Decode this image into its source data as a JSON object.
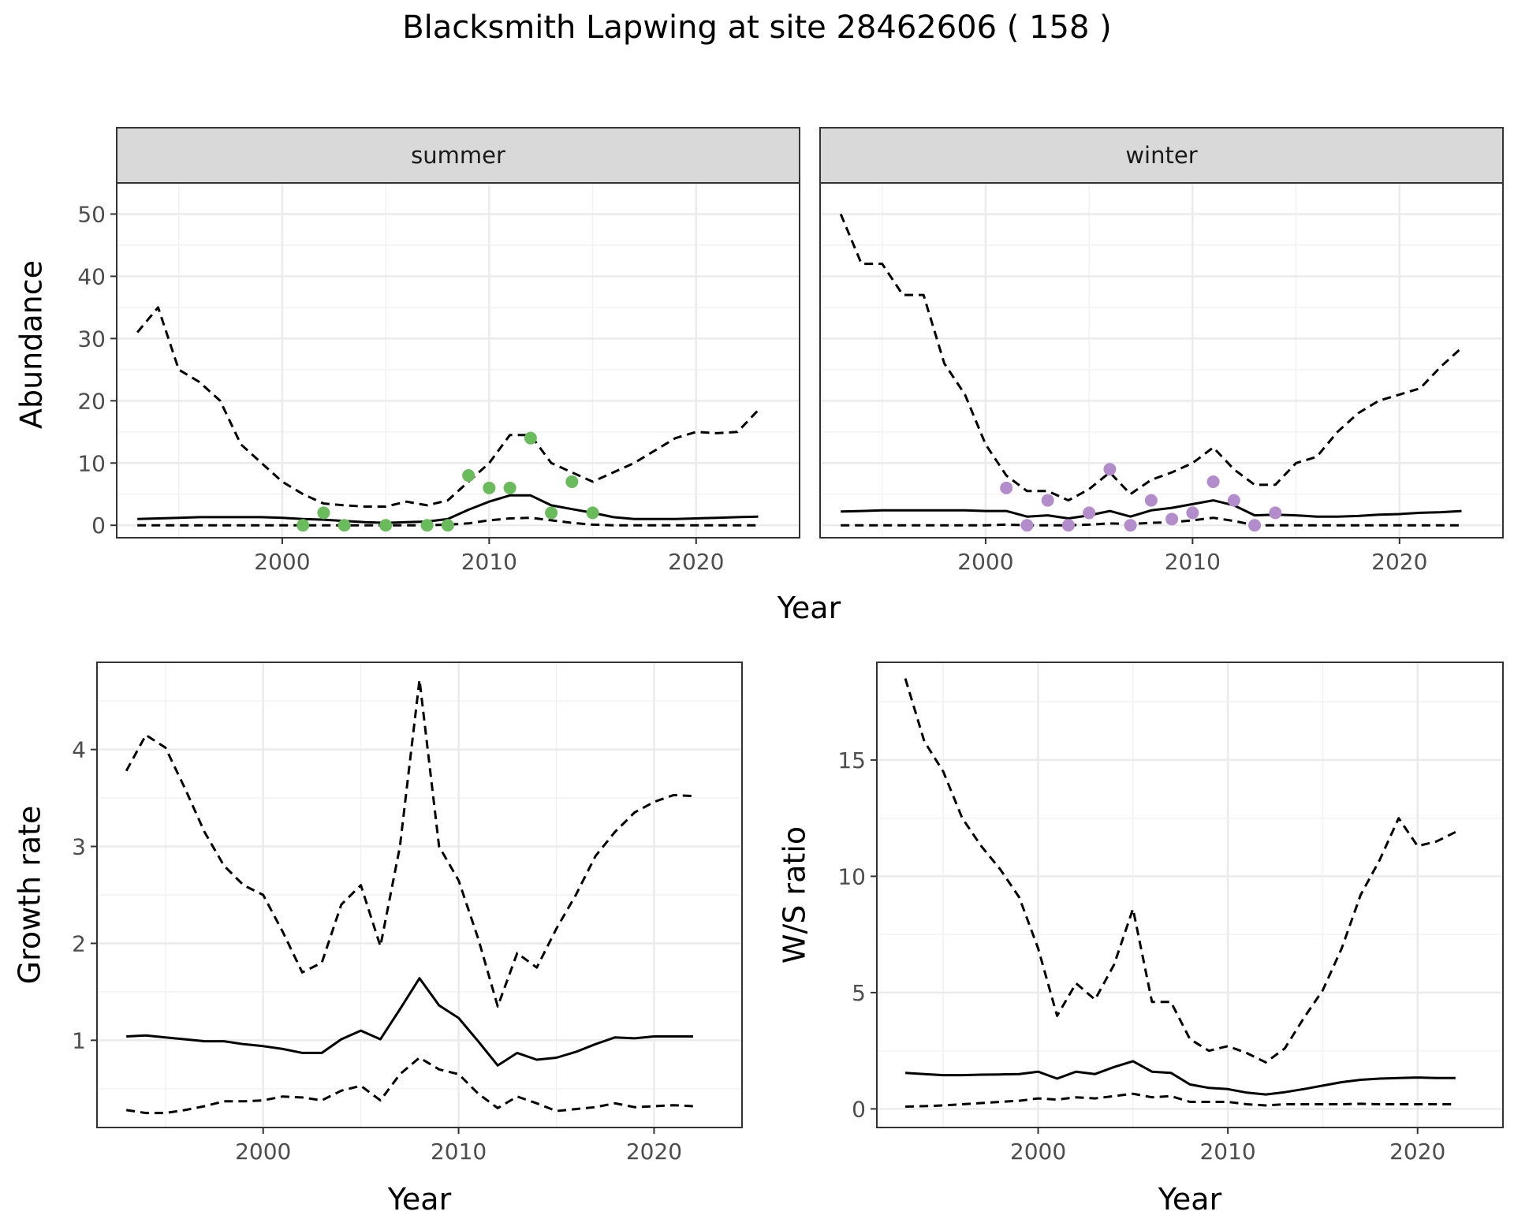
{
  "title": "Blacksmith Lapwing at site 28462606 ( 158 )",
  "colors": {
    "summer_points": "#6abb5b",
    "winter_points": "#b38ccc",
    "strip_fill": "#d9d9d9",
    "line": "#000000",
    "grid": "#ebebeb"
  },
  "chart_data": [
    {
      "id": "summer",
      "type": "line",
      "facet_label": "summer",
      "ylabel": "Abundance",
      "xlabel": "",
      "xlim": [
        1992,
        2025
      ],
      "ylim": [
        -2,
        55
      ],
      "xticks": [
        2000,
        2010,
        2020
      ],
      "yticks": [
        0,
        10,
        20,
        30,
        40,
        50
      ],
      "grid": true,
      "point_color": "#6abb5b",
      "series": [
        {
          "style": "solid",
          "x": [
            1993,
            1994,
            1995,
            1996,
            1997,
            1998,
            1999,
            2000,
            2001,
            2002,
            2003,
            2004,
            2005,
            2006,
            2007,
            2008,
            2009,
            2010,
            2011,
            2012,
            2013,
            2014,
            2015,
            2016,
            2017,
            2018,
            2019,
            2020,
            2021,
            2022,
            2023
          ],
          "values": [
            1.0,
            1.1,
            1.2,
            1.3,
            1.3,
            1.3,
            1.3,
            1.2,
            1.0,
            0.9,
            0.7,
            0.5,
            0.4,
            0.5,
            0.6,
            1.0,
            2.5,
            3.8,
            4.8,
            4.8,
            3.2,
            2.6,
            2.0,
            1.3,
            1.0,
            1.0,
            1.0,
            1.1,
            1.2,
            1.3,
            1.4
          ]
        },
        {
          "style": "dashed",
          "x": [
            1993,
            1994,
            1995,
            1996,
            1997,
            1998,
            1999,
            2000,
            2001,
            2002,
            2003,
            2004,
            2005,
            2006,
            2007,
            2008,
            2009,
            2010,
            2011,
            2012,
            2013,
            2014,
            2015,
            2016,
            2017,
            2018,
            2019,
            2020,
            2021,
            2022,
            2023
          ],
          "values": [
            31,
            35,
            25,
            23,
            20,
            13,
            10,
            7,
            5,
            3.5,
            3.2,
            3,
            3,
            3.8,
            3.2,
            4,
            7,
            10,
            14.5,
            14.5,
            10,
            8.5,
            7,
            8.5,
            10,
            12,
            14,
            15,
            14.8,
            15,
            18.5
          ]
        },
        {
          "style": "dashed",
          "x": [
            1993,
            1994,
            1995,
            1996,
            1997,
            1998,
            1999,
            2000,
            2001,
            2002,
            2003,
            2004,
            2005,
            2006,
            2007,
            2008,
            2009,
            2010,
            2011,
            2012,
            2013,
            2014,
            2015,
            2016,
            2017,
            2018,
            2019,
            2020,
            2021,
            2022,
            2023
          ],
          "values": [
            0,
            0,
            0,
            0,
            0,
            0,
            0,
            0,
            0,
            0,
            0,
            0,
            0,
            0,
            0,
            0.1,
            0.3,
            0.8,
            1.1,
            1.2,
            0.8,
            0.4,
            0.1,
            0,
            0,
            0,
            0,
            0,
            0,
            0,
            0
          ]
        }
      ],
      "points": [
        {
          "x": 2001,
          "y": 0
        },
        {
          "x": 2002,
          "y": 2
        },
        {
          "x": 2003,
          "y": 0
        },
        {
          "x": 2005,
          "y": 0
        },
        {
          "x": 2007,
          "y": 0
        },
        {
          "x": 2008,
          "y": 0
        },
        {
          "x": 2009,
          "y": 8
        },
        {
          "x": 2010,
          "y": 6
        },
        {
          "x": 2011,
          "y": 6
        },
        {
          "x": 2012,
          "y": 14
        },
        {
          "x": 2013,
          "y": 2
        },
        {
          "x": 2014,
          "y": 7
        },
        {
          "x": 2015,
          "y": 2
        }
      ]
    },
    {
      "id": "winter",
      "type": "line",
      "facet_label": "winter",
      "ylabel": "",
      "xlabel": "",
      "xlim": [
        1992,
        2025
      ],
      "ylim": [
        -2,
        55
      ],
      "xticks": [
        2000,
        2010,
        2020
      ],
      "yticks": [
        0,
        10,
        20,
        30,
        40,
        50
      ],
      "grid": true,
      "point_color": "#b38ccc",
      "series": [
        {
          "style": "solid",
          "x": [
            1993,
            1994,
            1995,
            1996,
            1997,
            1998,
            1999,
            2000,
            2001,
            2002,
            2003,
            2004,
            2005,
            2006,
            2007,
            2008,
            2009,
            2010,
            2011,
            2012,
            2013,
            2014,
            2015,
            2016,
            2017,
            2018,
            2019,
            2020,
            2021,
            2022,
            2023
          ],
          "values": [
            2.2,
            2.3,
            2.4,
            2.4,
            2.4,
            2.4,
            2.4,
            2.3,
            2.3,
            1.4,
            1.6,
            1.1,
            1.6,
            2.3,
            1.4,
            2.4,
            2.8,
            3.4,
            4.0,
            3.2,
            1.6,
            1.7,
            1.6,
            1.4,
            1.4,
            1.5,
            1.7,
            1.8,
            2.0,
            2.1,
            2.3
          ]
        },
        {
          "style": "dashed",
          "x": [
            1993,
            1994,
            1995,
            1996,
            1997,
            1998,
            1999,
            2000,
            2001,
            2002,
            2003,
            2004,
            2005,
            2006,
            2007,
            2008,
            2009,
            2010,
            2011,
            2012,
            2013,
            2014,
            2015,
            2016,
            2017,
            2018,
            2019,
            2020,
            2021,
            2022,
            2023
          ],
          "values": [
            50,
            42,
            42,
            37,
            37,
            26,
            21,
            13,
            8,
            5.5,
            5.5,
            4,
            5.8,
            8.5,
            5,
            7.3,
            8.5,
            10,
            12.5,
            9,
            6.5,
            6.5,
            10,
            11,
            15,
            18,
            20,
            21,
            22,
            25.5,
            28.5
          ]
        },
        {
          "style": "dashed",
          "x": [
            1993,
            1994,
            1995,
            1996,
            1997,
            1998,
            1999,
            2000,
            2001,
            2002,
            2003,
            2004,
            2005,
            2006,
            2007,
            2008,
            2009,
            2010,
            2011,
            2012,
            2013,
            2014,
            2015,
            2016,
            2017,
            2018,
            2019,
            2020,
            2021,
            2022,
            2023
          ],
          "values": [
            0,
            0,
            0,
            0,
            0,
            0,
            0,
            0,
            0.1,
            0,
            0,
            0,
            0.1,
            0.3,
            0.2,
            0.4,
            0.5,
            0.8,
            1.2,
            0.7,
            0,
            0,
            0,
            0,
            0,
            0,
            0,
            0,
            0,
            0,
            0
          ]
        }
      ],
      "points": [
        {
          "x": 2001,
          "y": 6
        },
        {
          "x": 2002,
          "y": 0
        },
        {
          "x": 2003,
          "y": 4
        },
        {
          "x": 2004,
          "y": 0
        },
        {
          "x": 2005,
          "y": 2
        },
        {
          "x": 2006,
          "y": 9
        },
        {
          "x": 2007,
          "y": 0
        },
        {
          "x": 2008,
          "y": 4
        },
        {
          "x": 2009,
          "y": 1
        },
        {
          "x": 2010,
          "y": 2
        },
        {
          "x": 2011,
          "y": 7
        },
        {
          "x": 2012,
          "y": 4
        },
        {
          "x": 2013,
          "y": 0
        },
        {
          "x": 2014,
          "y": 2
        }
      ]
    },
    {
      "id": "growth",
      "type": "line",
      "ylabel": "Growth rate",
      "xlabel": "Year",
      "xlim": [
        1991.5,
        2024.5
      ],
      "ylim": [
        0.1,
        4.9
      ],
      "xticks": [
        2000,
        2010,
        2020
      ],
      "yticks": [
        1,
        2,
        3,
        4
      ],
      "grid": true,
      "series": [
        {
          "style": "solid",
          "x": [
            1993,
            1994,
            1995,
            1996,
            1997,
            1998,
            1999,
            2000,
            2001,
            2002,
            2003,
            2004,
            2005,
            2006,
            2007,
            2008,
            2009,
            2010,
            2011,
            2012,
            2013,
            2014,
            2015,
            2016,
            2017,
            2018,
            2019,
            2020,
            2021,
            2022
          ],
          "values": [
            1.04,
            1.05,
            1.03,
            1.01,
            0.99,
            0.99,
            0.96,
            0.94,
            0.91,
            0.87,
            0.87,
            1.01,
            1.1,
            1.01,
            1.32,
            1.64,
            1.36,
            1.23,
            0.99,
            0.74,
            0.87,
            0.8,
            0.82,
            0.88,
            0.96,
            1.03,
            1.02,
            1.04,
            1.04,
            1.04
          ]
        },
        {
          "style": "dashed",
          "x": [
            1993,
            1994,
            1995,
            1996,
            1997,
            1998,
            1999,
            2000,
            2001,
            2002,
            2003,
            2004,
            2005,
            2006,
            2007,
            2008,
            2009,
            2010,
            2011,
            2012,
            2013,
            2014,
            2015,
            2016,
            2017,
            2018,
            2019,
            2020,
            2021,
            2022
          ],
          "values": [
            3.78,
            4.15,
            4.02,
            3.6,
            3.15,
            2.8,
            2.6,
            2.5,
            2.12,
            1.7,
            1.8,
            2.4,
            2.6,
            1.97,
            3.0,
            4.72,
            3.0,
            2.65,
            2.05,
            1.35,
            1.9,
            1.75,
            2.15,
            2.5,
            2.9,
            3.15,
            3.35,
            3.46,
            3.53,
            3.52
          ]
        },
        {
          "style": "dashed",
          "x": [
            1993,
            1994,
            1995,
            1996,
            1997,
            1998,
            1999,
            2000,
            2001,
            2002,
            2003,
            2004,
            2005,
            2006,
            2007,
            2008,
            2009,
            2010,
            2011,
            2012,
            2013,
            2014,
            2015,
            2016,
            2017,
            2018,
            2019,
            2020,
            2021,
            2022
          ],
          "values": [
            0.28,
            0.25,
            0.25,
            0.28,
            0.32,
            0.37,
            0.37,
            0.38,
            0.42,
            0.41,
            0.38,
            0.48,
            0.53,
            0.38,
            0.65,
            0.82,
            0.7,
            0.65,
            0.45,
            0.3,
            0.42,
            0.35,
            0.27,
            0.29,
            0.31,
            0.35,
            0.31,
            0.32,
            0.33,
            0.32
          ]
        }
      ]
    },
    {
      "id": "ws_ratio",
      "type": "line",
      "ylabel": "W/S ratio",
      "xlabel": "Year",
      "xlim": [
        1991.5,
        2024.5
      ],
      "ylim": [
        -0.8,
        19.2
      ],
      "xticks": [
        2000,
        2010,
        2020
      ],
      "yticks": [
        0,
        5,
        10,
        15
      ],
      "grid": true,
      "series": [
        {
          "style": "solid",
          "x": [
            1993,
            1994,
            1995,
            1996,
            1997,
            1998,
            1999,
            2000,
            2001,
            2002,
            2003,
            2004,
            2005,
            2006,
            2007,
            2008,
            2009,
            2010,
            2011,
            2012,
            2013,
            2014,
            2015,
            2016,
            2017,
            2018,
            2019,
            2020,
            2021,
            2022
          ],
          "values": [
            1.55,
            1.5,
            1.45,
            1.45,
            1.47,
            1.48,
            1.5,
            1.6,
            1.3,
            1.6,
            1.5,
            1.8,
            2.05,
            1.6,
            1.55,
            1.05,
            0.9,
            0.85,
            0.7,
            0.62,
            0.72,
            0.85,
            1.0,
            1.15,
            1.25,
            1.3,
            1.33,
            1.35,
            1.33,
            1.33
          ]
        },
        {
          "style": "dashed",
          "x": [
            1993,
            1994,
            1995,
            1996,
            1997,
            1998,
            1999,
            2000,
            2001,
            2002,
            2003,
            2004,
            2005,
            2006,
            2007,
            2008,
            2009,
            2010,
            2011,
            2012,
            2013,
            2014,
            2015,
            2016,
            2017,
            2018,
            2019,
            2020,
            2021,
            2022
          ],
          "values": [
            18.5,
            15.8,
            14.5,
            12.5,
            11.3,
            10.3,
            9.1,
            6.9,
            4.0,
            5.4,
            4.7,
            6.2,
            8.6,
            4.6,
            4.6,
            3.0,
            2.5,
            2.7,
            2.4,
            2.0,
            2.6,
            3.9,
            5.1,
            6.9,
            9.2,
            10.7,
            12.5,
            11.3,
            11.5,
            11.9
          ]
        },
        {
          "style": "dashed",
          "x": [
            1993,
            1994,
            1995,
            1996,
            1997,
            1998,
            1999,
            2000,
            2001,
            2002,
            2003,
            2004,
            2005,
            2006,
            2007,
            2008,
            2009,
            2010,
            2011,
            2012,
            2013,
            2014,
            2015,
            2016,
            2017,
            2018,
            2019,
            2020,
            2021,
            2022
          ],
          "values": [
            0.1,
            0.12,
            0.15,
            0.2,
            0.25,
            0.3,
            0.35,
            0.45,
            0.4,
            0.5,
            0.45,
            0.55,
            0.65,
            0.5,
            0.55,
            0.3,
            0.3,
            0.3,
            0.2,
            0.15,
            0.2,
            0.2,
            0.2,
            0.2,
            0.22,
            0.2,
            0.2,
            0.2,
            0.2,
            0.2
          ]
        }
      ]
    }
  ],
  "labels": {
    "top_xlabel": "Year",
    "bottom_left_xlabel": "Year",
    "bottom_right_xlabel": "Year"
  }
}
